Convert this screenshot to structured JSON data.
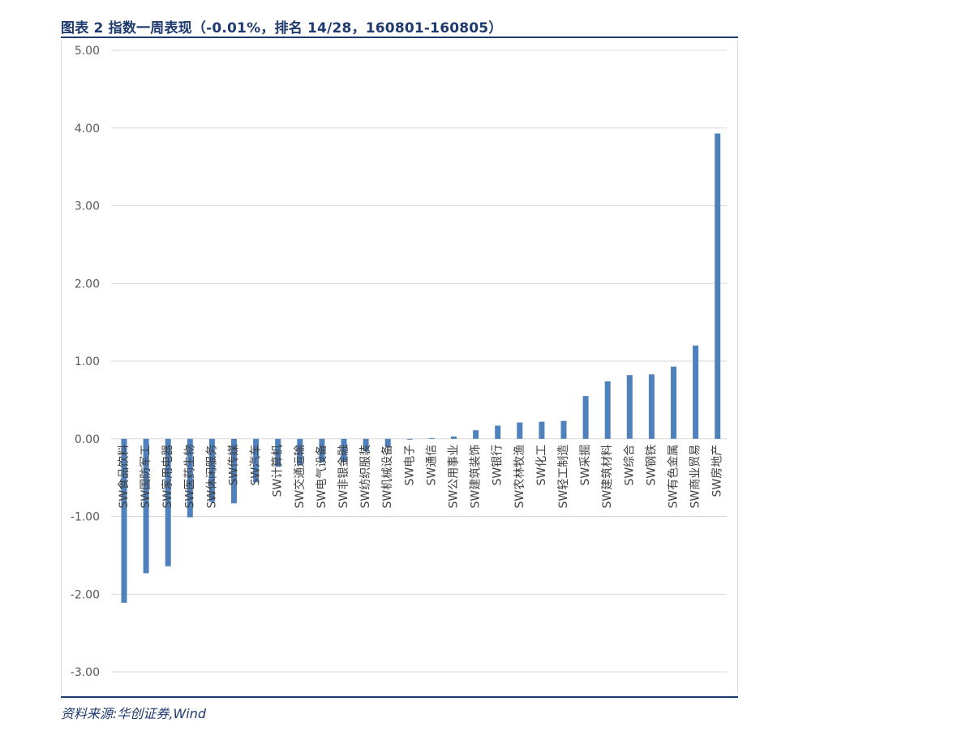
{
  "figure": {
    "title": "图表 2   指数一周表现（-0.01%，排名 14/28，160801-160805）",
    "source": "资料来源:华创证券,Wind"
  },
  "colors": {
    "bar": "#4f81bd",
    "title": "#1f3a6e",
    "grid": "#d9d9d9",
    "axis_text": "#595959"
  },
  "chart_data": {
    "type": "bar",
    "title": "",
    "xlabel": "",
    "ylabel": "",
    "ylim": [
      -3.0,
      5.0
    ],
    "y_ticks": [
      5.0,
      4.0,
      3.0,
      2.0,
      1.0,
      0.0,
      -1.0,
      -2.0,
      -3.0
    ],
    "y_tick_labels": [
      "5.00",
      "4.00",
      "3.00",
      "2.00",
      "1.00",
      "0.00",
      "-1.00",
      "-2.00",
      "-3.00"
    ],
    "grid": "horizontal",
    "legend": "none",
    "categories": [
      "SW食品饮料",
      "SW国防军工",
      "SW家用电器",
      "SW医药生物",
      "SW休闲服务",
      "SW传媒",
      "SW汽车",
      "SW计算机",
      "SW交通运输",
      "SW电气设备",
      "SW非银金融",
      "SW纺织服装",
      "SW机械设备",
      "SW电子",
      "SW通信",
      "SW公用事业",
      "SW建筑装饰",
      "SW银行",
      "SW农林牧渔",
      "SW化工",
      "SW轻工制造",
      "SW采掘",
      "SW建筑材料",
      "SW综合",
      "SW钢铁",
      "SW有色金属",
      "SW商业贸易",
      "SW房地产"
    ],
    "values": [
      -2.11,
      -1.73,
      -1.64,
      -1.01,
      -0.81,
      -0.83,
      -0.56,
      -0.36,
      -0.34,
      -0.3,
      -0.29,
      -0.16,
      -0.1,
      -0.01,
      0.01,
      0.03,
      0.11,
      0.17,
      0.21,
      0.22,
      0.23,
      0.55,
      0.74,
      0.82,
      0.83,
      0.93,
      1.2,
      3.93
    ]
  }
}
